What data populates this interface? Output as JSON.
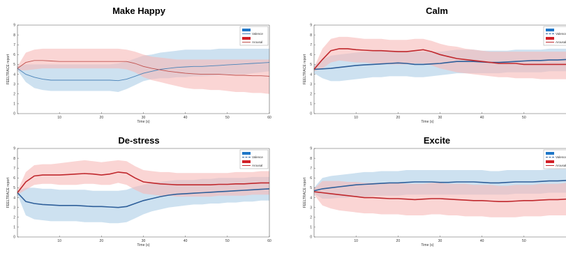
{
  "chart_data": [
    {
      "type": "line",
      "title": "Make Happy",
      "xlabel": "Time (s)",
      "ylabel": "FEELTRACE report",
      "xlim": [
        0,
        60
      ],
      "ylim": [
        0,
        9
      ],
      "xticks": [
        "10",
        "20",
        "30",
        "40",
        "50",
        "60"
      ],
      "yticks": [
        "0",
        "1",
        "2",
        "3",
        "4",
        "5",
        "6",
        "7",
        "8",
        "9"
      ],
      "legend": [
        "Valence",
        "Arousal"
      ],
      "legend_position": "top-right",
      "x": [
        0,
        2,
        4,
        6,
        8,
        10,
        12,
        14,
        16,
        18,
        20,
        22,
        24,
        26,
        28,
        30,
        32,
        34,
        36,
        38,
        40,
        42,
        44,
        46,
        48,
        50,
        52,
        54,
        56,
        58,
        60
      ],
      "series": [
        {
          "name": "Valence",
          "color": "#4a83b8",
          "values": [
            4.6,
            4.0,
            3.7,
            3.5,
            3.4,
            3.4,
            3.4,
            3.4,
            3.4,
            3.4,
            3.4,
            3.4,
            3.35,
            3.5,
            3.8,
            4.1,
            4.3,
            4.5,
            4.6,
            4.7,
            4.75,
            4.8,
            4.8,
            4.85,
            4.9,
            4.95,
            5.0,
            5.05,
            5.1,
            5.15,
            5.2
          ],
          "lower": [
            4.4,
            3.2,
            2.6,
            2.4,
            2.3,
            2.3,
            2.3,
            2.3,
            2.3,
            2.3,
            2.3,
            2.3,
            2.2,
            2.5,
            2.9,
            3.3,
            3.5,
            3.6,
            3.6,
            3.7,
            3.7,
            3.8,
            3.8,
            3.85,
            3.9,
            3.95,
            4.0,
            4.0,
            4.1,
            4.2,
            4.3
          ],
          "upper": [
            4.8,
            5.0,
            5.0,
            5.0,
            5.0,
            5.0,
            5.0,
            5.0,
            5.0,
            5.0,
            5.0,
            5.0,
            5.1,
            5.3,
            5.6,
            5.9,
            6.0,
            6.2,
            6.3,
            6.4,
            6.5,
            6.5,
            6.5,
            6.5,
            6.6,
            6.6,
            6.6,
            6.6,
            6.6,
            6.6,
            6.6
          ]
        },
        {
          "name": "Arousal",
          "color": "#c0504d",
          "values": [
            4.6,
            5.2,
            5.4,
            5.4,
            5.35,
            5.3,
            5.3,
            5.3,
            5.3,
            5.3,
            5.3,
            5.3,
            5.3,
            5.3,
            5.1,
            4.8,
            4.6,
            4.45,
            4.3,
            4.2,
            4.1,
            4.05,
            4.0,
            4.0,
            4.0,
            3.95,
            3.9,
            3.9,
            3.85,
            3.85,
            3.8
          ],
          "lower": [
            4.4,
            4.4,
            4.5,
            4.6,
            4.6,
            4.6,
            4.6,
            4.6,
            4.6,
            4.6,
            4.6,
            4.6,
            4.6,
            4.5,
            4.2,
            3.7,
            3.4,
            3.2,
            3.0,
            2.8,
            2.6,
            2.5,
            2.5,
            2.4,
            2.4,
            2.3,
            2.2,
            2.2,
            2.1,
            2.1,
            2.0
          ],
          "upper": [
            4.8,
            6.2,
            6.5,
            6.6,
            6.6,
            6.6,
            6.6,
            6.6,
            6.6,
            6.6,
            6.6,
            6.6,
            6.6,
            6.5,
            6.3,
            6.0,
            5.8,
            5.7,
            5.6,
            5.5,
            5.5,
            5.5,
            5.5,
            5.5,
            5.5,
            5.5,
            5.5,
            5.5,
            5.5,
            5.5,
            5.5
          ]
        }
      ]
    },
    {
      "type": "line",
      "title": "Calm",
      "xlabel": "Time (s)",
      "ylabel": "FEELTRACE report",
      "xlim": [
        0,
        60
      ],
      "ylim": [
        0,
        9
      ],
      "xticks": [
        "10",
        "20",
        "30",
        "40",
        "50"
      ],
      "yticks": [
        "0",
        "1",
        "2",
        "3",
        "4",
        "5",
        "6",
        "7",
        "8",
        "9"
      ],
      "legend": [
        "Valence",
        "Arousal"
      ],
      "legend_position": "top-right",
      "x": [
        0,
        2,
        4,
        6,
        8,
        10,
        12,
        14,
        16,
        18,
        20,
        22,
        24,
        26,
        28,
        30,
        32,
        34,
        36,
        38,
        40,
        42,
        44,
        46,
        48,
        50,
        52,
        54,
        56,
        58,
        60
      ],
      "series": [
        {
          "name": "Valence",
          "color": "#2e5f9a",
          "values": [
            4.5,
            4.55,
            4.6,
            4.7,
            4.8,
            4.9,
            4.95,
            5.0,
            5.05,
            5.1,
            5.15,
            5.1,
            5.0,
            5.0,
            5.05,
            5.1,
            5.2,
            5.3,
            5.3,
            5.3,
            5.25,
            5.2,
            5.2,
            5.25,
            5.3,
            5.35,
            5.4,
            5.4,
            5.45,
            5.45,
            5.5
          ],
          "lower": [
            4.1,
            3.6,
            3.3,
            3.3,
            3.4,
            3.5,
            3.6,
            3.7,
            3.7,
            3.8,
            3.8,
            3.8,
            3.7,
            3.7,
            3.8,
            3.9,
            4.0,
            4.1,
            4.1,
            4.1,
            4.1,
            4.1,
            4.1,
            4.2,
            4.2,
            4.2,
            4.2,
            4.2,
            4.3,
            4.3,
            4.3
          ],
          "upper": [
            4.9,
            5.5,
            5.9,
            6.0,
            6.1,
            6.2,
            6.3,
            6.3,
            6.4,
            6.4,
            6.4,
            6.4,
            6.3,
            6.3,
            6.3,
            6.3,
            6.4,
            6.5,
            6.5,
            6.5,
            6.4,
            6.4,
            6.4,
            6.4,
            6.5,
            6.5,
            6.5,
            6.5,
            6.6,
            6.6,
            6.6
          ]
        },
        {
          "name": "Arousal",
          "color": "#c0282d",
          "values": [
            4.5,
            5.5,
            6.4,
            6.6,
            6.6,
            6.5,
            6.45,
            6.4,
            6.4,
            6.35,
            6.3,
            6.3,
            6.4,
            6.5,
            6.3,
            6.0,
            5.8,
            5.6,
            5.5,
            5.4,
            5.3,
            5.2,
            5.1,
            5.1,
            5.1,
            5.0,
            5.0,
            5.0,
            5.0,
            5.0,
            5.0
          ],
          "lower": [
            4.3,
            4.6,
            5.2,
            5.4,
            5.3,
            5.2,
            5.2,
            5.1,
            5.1,
            5.0,
            5.0,
            5.0,
            5.1,
            5.1,
            4.9,
            4.6,
            4.4,
            4.2,
            4.1,
            4.0,
            3.9,
            3.8,
            3.7,
            3.7,
            3.6,
            3.6,
            3.6,
            3.5,
            3.5,
            3.5,
            3.5
          ],
          "upper": [
            4.7,
            6.6,
            7.6,
            7.8,
            7.8,
            7.7,
            7.6,
            7.6,
            7.6,
            7.5,
            7.5,
            7.5,
            7.6,
            7.6,
            7.4,
            7.1,
            6.9,
            6.8,
            6.6,
            6.5,
            6.4,
            6.3,
            6.3,
            6.3,
            6.3,
            6.3,
            6.3,
            6.3,
            6.3,
            6.3,
            6.3
          ]
        }
      ]
    },
    {
      "type": "line",
      "title": "De-stress",
      "xlabel": "Time (s)",
      "ylabel": "FEELTRACE report",
      "xlim": [
        0,
        60
      ],
      "ylim": [
        0,
        9
      ],
      "xticks": [
        "10",
        "20",
        "30",
        "40",
        "50",
        "60"
      ],
      "yticks": [
        "0",
        "1",
        "2",
        "3",
        "4",
        "5",
        "6",
        "7",
        "8",
        "9"
      ],
      "legend": [
        "Valence",
        "Arousal"
      ],
      "legend_position": "top-right",
      "x": [
        0,
        2,
        4,
        6,
        8,
        10,
        12,
        14,
        16,
        18,
        20,
        22,
        24,
        26,
        28,
        30,
        32,
        34,
        36,
        38,
        40,
        42,
        44,
        46,
        48,
        50,
        52,
        54,
        56,
        58,
        60
      ],
      "series": [
        {
          "name": "Valence",
          "color": "#2e5f9a",
          "values": [
            4.5,
            3.6,
            3.4,
            3.3,
            3.25,
            3.2,
            3.2,
            3.2,
            3.15,
            3.1,
            3.1,
            3.05,
            3.0,
            3.1,
            3.4,
            3.7,
            3.9,
            4.1,
            4.25,
            4.35,
            4.4,
            4.45,
            4.5,
            4.55,
            4.6,
            4.65,
            4.7,
            4.75,
            4.8,
            4.85,
            4.9
          ],
          "lower": [
            4.3,
            2.2,
            1.8,
            1.7,
            1.6,
            1.6,
            1.6,
            1.6,
            1.5,
            1.5,
            1.5,
            1.4,
            1.4,
            1.5,
            1.9,
            2.3,
            2.6,
            2.8,
            3.0,
            3.1,
            3.2,
            3.3,
            3.3,
            3.4,
            3.4,
            3.5,
            3.5,
            3.6,
            3.6,
            3.7,
            3.7
          ],
          "upper": [
            4.7,
            5.0,
            5.0,
            4.9,
            4.9,
            4.8,
            4.8,
            4.8,
            4.8,
            4.7,
            4.7,
            4.7,
            4.7,
            4.8,
            5.1,
            5.3,
            5.5,
            5.6,
            5.7,
            5.8,
            5.8,
            5.8,
            5.9,
            5.9,
            6.0,
            6.0,
            6.0,
            6.0,
            6.1,
            6.1,
            6.1
          ]
        },
        {
          "name": "Arousal",
          "color": "#c0282d",
          "values": [
            4.5,
            5.6,
            6.2,
            6.3,
            6.3,
            6.3,
            6.35,
            6.4,
            6.45,
            6.4,
            6.3,
            6.4,
            6.6,
            6.5,
            6.0,
            5.6,
            5.5,
            5.4,
            5.35,
            5.3,
            5.3,
            5.3,
            5.3,
            5.3,
            5.35,
            5.35,
            5.4,
            5.4,
            5.45,
            5.5,
            5.5
          ],
          "lower": [
            4.3,
            4.8,
            5.3,
            5.4,
            5.4,
            5.3,
            5.3,
            5.3,
            5.4,
            5.4,
            5.3,
            5.3,
            5.5,
            5.3,
            4.8,
            4.4,
            4.3,
            4.2,
            4.2,
            4.1,
            4.1,
            4.1,
            4.1,
            4.1,
            4.2,
            4.2,
            4.2,
            4.2,
            4.3,
            4.3,
            4.3
          ],
          "upper": [
            4.7,
            6.6,
            7.3,
            7.4,
            7.4,
            7.5,
            7.6,
            7.7,
            7.8,
            7.7,
            7.6,
            7.7,
            7.8,
            7.7,
            7.2,
            6.8,
            6.7,
            6.6,
            6.6,
            6.5,
            6.5,
            6.5,
            6.5,
            6.5,
            6.5,
            6.5,
            6.6,
            6.6,
            6.6,
            6.7,
            6.7
          ]
        }
      ]
    },
    {
      "type": "line",
      "title": "Excite",
      "xlabel": "Time (s)",
      "ylabel": "FEELTRACE report",
      "xlim": [
        0,
        60
      ],
      "ylim": [
        0,
        9
      ],
      "xticks": [
        "10",
        "20",
        "30",
        "40",
        "50"
      ],
      "yticks": [
        "0",
        "1",
        "2",
        "3",
        "4",
        "5",
        "6",
        "7",
        "8",
        "9"
      ],
      "legend": [
        "Valence",
        "Arousal"
      ],
      "legend_position": "top-right",
      "x": [
        0,
        2,
        4,
        6,
        8,
        10,
        12,
        14,
        16,
        18,
        20,
        22,
        24,
        26,
        28,
        30,
        32,
        34,
        36,
        38,
        40,
        42,
        44,
        46,
        48,
        50,
        52,
        54,
        56,
        58,
        60
      ],
      "series": [
        {
          "name": "Valence",
          "color": "#2e5f9a",
          "values": [
            4.7,
            4.9,
            5.0,
            5.1,
            5.2,
            5.3,
            5.35,
            5.4,
            5.45,
            5.5,
            5.5,
            5.55,
            5.6,
            5.6,
            5.6,
            5.55,
            5.55,
            5.6,
            5.6,
            5.6,
            5.55,
            5.5,
            5.5,
            5.55,
            5.6,
            5.6,
            5.6,
            5.65,
            5.7,
            5.7,
            5.75
          ],
          "lower": [
            4.4,
            3.9,
            3.9,
            4.0,
            4.0,
            4.1,
            4.1,
            4.2,
            4.2,
            4.2,
            4.2,
            4.3,
            4.3,
            4.3,
            4.3,
            4.3,
            4.3,
            4.3,
            4.3,
            4.3,
            4.3,
            4.3,
            4.3,
            4.3,
            4.4,
            4.4,
            4.4,
            4.4,
            4.5,
            4.5,
            4.5
          ],
          "upper": [
            5.0,
            6.0,
            6.2,
            6.3,
            6.4,
            6.5,
            6.6,
            6.6,
            6.7,
            6.7,
            6.7,
            6.8,
            6.8,
            6.8,
            6.8,
            6.8,
            6.8,
            6.8,
            6.8,
            6.8,
            6.8,
            6.7,
            6.7,
            6.8,
            6.8,
            6.8,
            6.8,
            6.8,
            6.9,
            6.9,
            6.9
          ]
        },
        {
          "name": "Arousal",
          "color": "#c0282d",
          "values": [
            4.6,
            4.5,
            4.4,
            4.3,
            4.2,
            4.1,
            4.0,
            4.0,
            3.95,
            3.9,
            3.9,
            3.85,
            3.8,
            3.85,
            3.9,
            3.9,
            3.85,
            3.8,
            3.75,
            3.7,
            3.7,
            3.65,
            3.6,
            3.6,
            3.65,
            3.7,
            3.7,
            3.75,
            3.8,
            3.8,
            3.85
          ],
          "lower": [
            4.3,
            3.2,
            2.9,
            2.7,
            2.6,
            2.5,
            2.4,
            2.4,
            2.3,
            2.3,
            2.3,
            2.2,
            2.2,
            2.2,
            2.3,
            2.3,
            2.2,
            2.2,
            2.1,
            2.1,
            2.1,
            2.0,
            2.0,
            2.0,
            2.0,
            2.1,
            2.1,
            2.1,
            2.2,
            2.2,
            2.2
          ],
          "upper": [
            4.9,
            5.7,
            5.7,
            5.7,
            5.6,
            5.6,
            5.5,
            5.5,
            5.5,
            5.5,
            5.5,
            5.4,
            5.4,
            5.4,
            5.5,
            5.5,
            5.4,
            5.4,
            5.4,
            5.3,
            5.3,
            5.3,
            5.2,
            5.2,
            5.3,
            5.3,
            5.3,
            5.4,
            5.4,
            5.4,
            5.5
          ]
        }
      ]
    }
  ]
}
